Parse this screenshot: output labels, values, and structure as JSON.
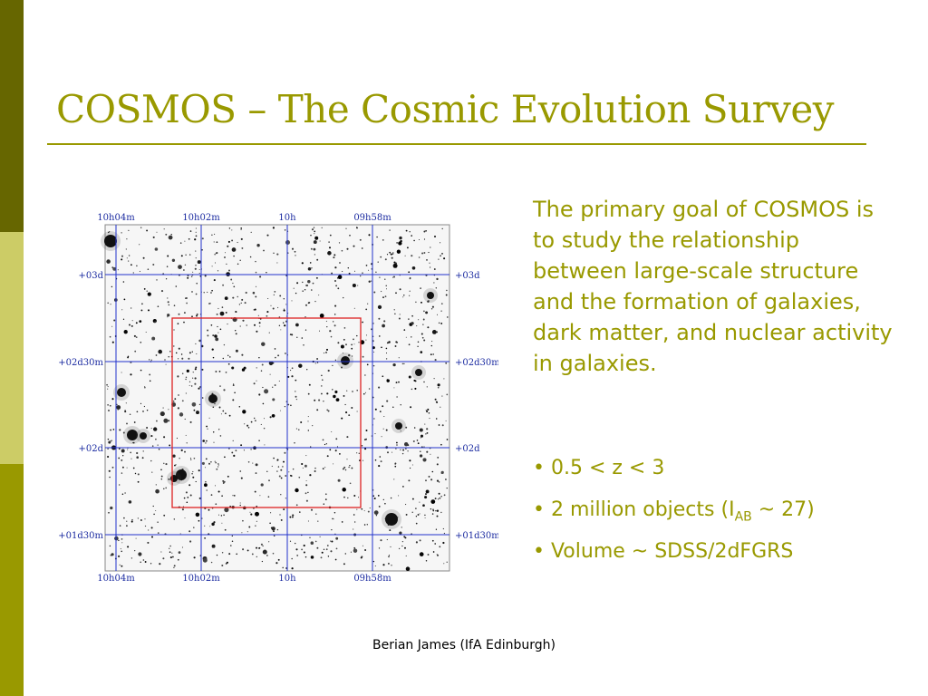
{
  "title": "COSMOS – The Cosmic Evolution Survey",
  "colors": {
    "accent": "#999900",
    "sidebar": [
      "#666600",
      "#cccc66",
      "#999900"
    ],
    "grid": "#2233cc",
    "box": "#dd2222",
    "label": "#1a2aa0"
  },
  "figure": {
    "ra_labels": [
      "10h04m",
      "10h02m",
      "10h",
      "09h58m"
    ],
    "dec_labels": [
      "+03d",
      "+02d30m",
      "+02d",
      "+01d30m"
    ]
  },
  "paragraph": "The primary goal of COSMOS is to study the relationship between large-scale structure and the formation of galaxies, dark matter, and nuclear activity in galaxies.",
  "bullets": {
    "b1": "• 0.5 < z < 3",
    "b2_pre": "• 2 million objects (I",
    "b2_sub": "AB",
    "b2_post": " ~ 27)",
    "b3": "• Volume ~ SDSS/2dFGRS"
  },
  "footer": "Berian James (IfA Edinburgh)"
}
